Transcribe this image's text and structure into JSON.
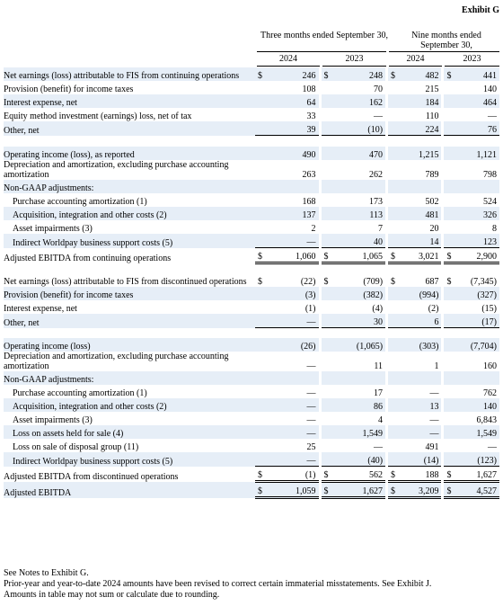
{
  "exhibit_title": "Exhibit G",
  "headers": {
    "three_months": "Three months ended September 30,",
    "nine_months": "Nine months ended September 30,",
    "years": [
      "2024",
      "2023",
      "2024",
      "2023"
    ]
  },
  "sections": [
    {
      "rows": [
        {
          "label": "Net earnings (loss) attributable to FIS from continuing operations",
          "values": [
            "246",
            "248",
            "482",
            "441"
          ],
          "dollar": true,
          "shade": true
        },
        {
          "label": "Provision (benefit) for income taxes",
          "values": [
            "108",
            "70",
            "215",
            "140"
          ]
        },
        {
          "label": "Interest expense, net",
          "values": [
            "64",
            "162",
            "184",
            "464"
          ],
          "shade": true
        },
        {
          "label": "Equity method investment (earnings) loss, net of tax",
          "values": [
            "33",
            "—",
            "110",
            "—"
          ]
        },
        {
          "label": "Other, net",
          "values": [
            "39",
            "(10)",
            "224",
            "76"
          ],
          "shade": true,
          "underline": true
        }
      ]
    },
    {
      "rows": [
        {
          "label": "Operating income (loss), as reported",
          "values": [
            "490",
            "470",
            "1,215",
            "1,121"
          ],
          "shade": true
        },
        {
          "label": "Depreciation and amortization, excluding purchase accounting amortization",
          "values": [
            "263",
            "262",
            "789",
            "798"
          ]
        },
        {
          "label": "Non-GAAP adjustments:",
          "values": [
            "",
            "",
            "",
            ""
          ],
          "shade": true
        },
        {
          "label": "Purchase accounting amortization (1)",
          "values": [
            "168",
            "173",
            "502",
            "524"
          ],
          "indent": true
        },
        {
          "label": "Acquisition, integration and other costs (2)",
          "values": [
            "137",
            "113",
            "481",
            "326"
          ],
          "indent": true,
          "shade": true
        },
        {
          "label": "Asset impairments (3)",
          "values": [
            "2",
            "7",
            "20",
            "8"
          ],
          "indent": true
        },
        {
          "label": "Indirect Worldpay business support costs (5)",
          "values": [
            "—",
            "40",
            "14",
            "123"
          ],
          "indent": true,
          "shade": true,
          "underline": true
        },
        {
          "label": "Adjusted EBITDA from continuing operations",
          "values": [
            "1,060",
            "1,065",
            "3,021",
            "2,900"
          ],
          "dollar": true,
          "double": true
        }
      ]
    },
    {
      "rows": [
        {
          "label": "Net earnings (loss) attributable to FIS from discontinued operations",
          "values": [
            "(22)",
            "(709)",
            "687",
            "(7,345)"
          ],
          "dollar": true
        },
        {
          "label": "Provision (benefit) for income taxes",
          "values": [
            "(3)",
            "(382)",
            "(994)",
            "(327)"
          ],
          "shade": true
        },
        {
          "label": "Interest expense, net",
          "values": [
            "(1)",
            "(4)",
            "(2)",
            "(15)"
          ]
        },
        {
          "label": "Other, net",
          "values": [
            "—",
            "30",
            "6",
            "(17)"
          ],
          "shade": true,
          "underline": true
        }
      ]
    },
    {
      "rows": [
        {
          "label": "Operating income (loss)",
          "values": [
            "(26)",
            "(1,065)",
            "(303)",
            "(7,704)"
          ],
          "shade": true
        },
        {
          "label": "Depreciation and amortization, excluding purchase accounting amortization",
          "values": [
            "—",
            "11",
            "1",
            "160"
          ]
        },
        {
          "label": "Non-GAAP adjustments:",
          "values": [
            "",
            "",
            "",
            ""
          ],
          "shade": true
        },
        {
          "label": "Purchase accounting amortization (1)",
          "values": [
            "—",
            "17",
            "—",
            "762"
          ],
          "indent": true
        },
        {
          "label": "Acquisition, integration and other costs (2)",
          "values": [
            "—",
            "86",
            "13",
            "140"
          ],
          "indent": true,
          "shade": true
        },
        {
          "label": "Asset impairments (3)",
          "values": [
            "—",
            "4",
            "—",
            "6,843"
          ],
          "indent": true
        },
        {
          "label": "Loss on assets held for sale (4)",
          "values": [
            "—",
            "1,549",
            "—",
            "1,549"
          ],
          "indent": true,
          "shade": true
        },
        {
          "label": "Loss on sale of disposal group (11)",
          "values": [
            "25",
            "—",
            "491",
            "—"
          ],
          "indent": true
        },
        {
          "label": "Indirect Worldpay business support costs (5)",
          "values": [
            "—",
            "(40)",
            "(14)",
            "(123)"
          ],
          "indent": true,
          "shade": true,
          "underline": true
        },
        {
          "label": "Adjusted EBITDA from discontinued operations",
          "values": [
            "(1)",
            "562",
            "188",
            "1,627"
          ],
          "dollar": true,
          "double": true
        },
        {
          "label": "Adjusted EBITDA",
          "values": [
            "1,059",
            "1,627",
            "3,209",
            "4,527"
          ],
          "dollar": true,
          "shade": true,
          "double": true
        }
      ]
    }
  ],
  "footer": [
    "See Notes to Exhibit G.",
    "Prior-year and year-to-date 2024 amounts have been revised to correct certain immaterial misstatements. See Exhibit J.",
    "Amounts in table may not sum or calculate due to rounding."
  ]
}
